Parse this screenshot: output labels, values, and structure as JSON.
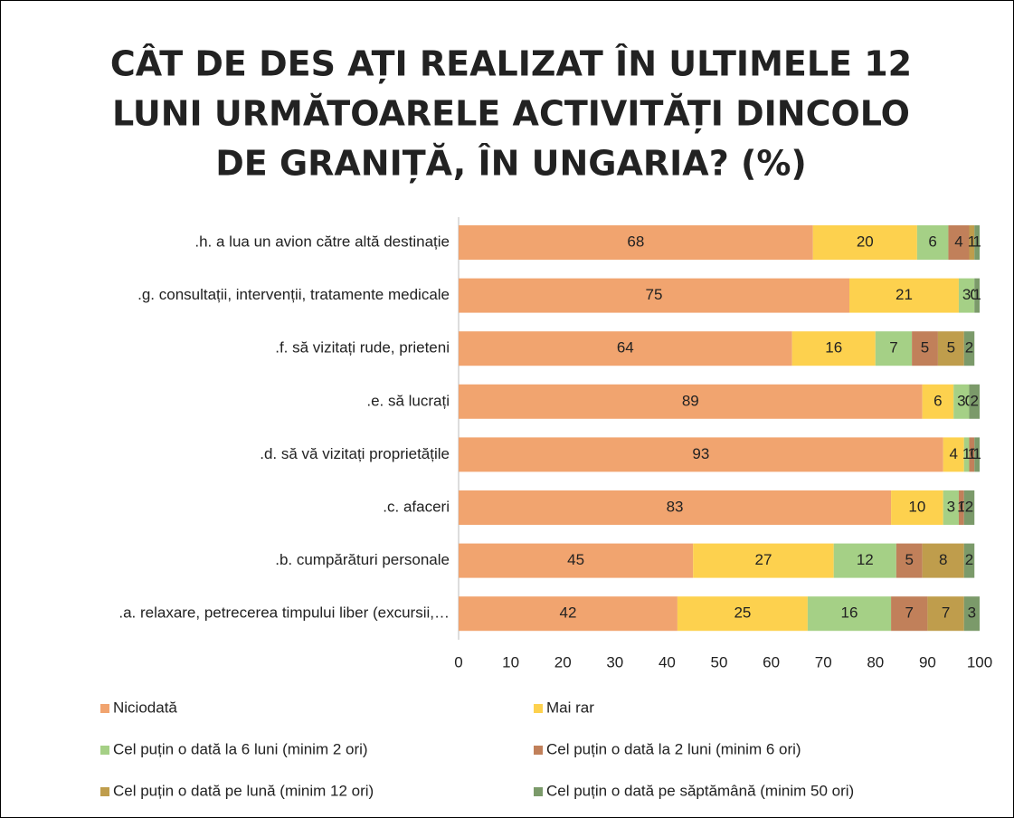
{
  "chart_data": {
    "type": "stacked_barh",
    "title": [
      "CÂT DE DES AȚI REALIZAT ÎN ULTIMELE 12",
      "LUNI URMĂTOARELE ACTIVITĂȚI DINCOLO",
      "DE GRANIȚĂ, ÎN UNGARIA? (%)"
    ],
    "categories": [
      ".h. a lua un avion către altă destinație",
      ".g. consultații, intervenții, tratamente medicale",
      ".f. să vizitați rude, prieteni",
      ".e. să lucrați",
      ".d. să vă vizitați proprietățile",
      ".c. afaceri",
      ".b. cumpărături personale",
      ".a. relaxare, petrecerea timpului liber (excursii,…"
    ],
    "series": [
      {
        "name": "Niciodată",
        "color": "#f1a46f",
        "values": [
          68,
          75,
          64,
          89,
          93,
          83,
          45,
          42
        ]
      },
      {
        "name": "Mai rar",
        "color": "#fdd14e",
        "values": [
          20,
          21,
          16,
          6,
          4,
          10,
          27,
          25
        ]
      },
      {
        "name": "Cel puțin o dată la 6 luni (minim 2 ori)",
        "color": "#a5d086",
        "values": [
          6,
          3,
          7,
          3,
          1,
          3,
          12,
          16
        ]
      },
      {
        "name": "Cel puțin o dată la 2 luni (minim 6 ori)",
        "color": "#c1805a",
        "values": [
          4,
          0,
          5,
          0,
          1,
          1,
          5,
          7
        ]
      },
      {
        "name": "Cel puțin o dată pe lună (minim 12 ori)",
        "color": "#bf9d4c",
        "values": [
          1,
          0,
          5,
          0,
          0,
          0,
          8,
          7
        ]
      },
      {
        "name": "Cel puțin o dată pe săptămână (minim 50 ori)",
        "color": "#7b9a6a",
        "values": [
          1,
          1,
          2,
          2,
          1,
          2,
          2,
          3
        ]
      }
    ],
    "xlim": [
      0,
      100
    ],
    "xticks": [
      0,
      10,
      20,
      30,
      40,
      50,
      60,
      70,
      80,
      90,
      100
    ]
  }
}
